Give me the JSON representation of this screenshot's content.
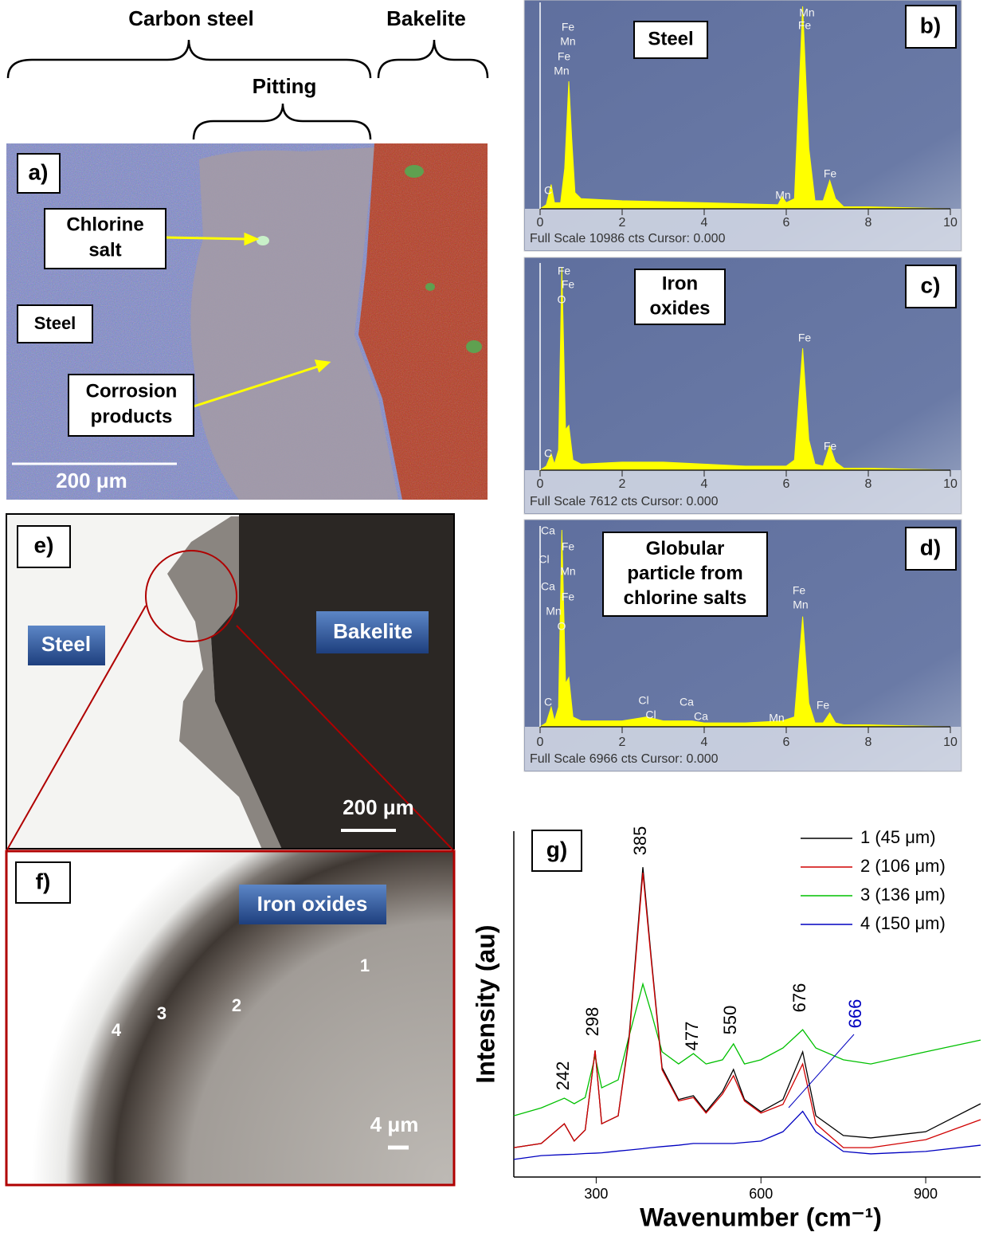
{
  "figure": {
    "panel_a": {
      "label": "a)",
      "carbon_steel": "Carbon steel",
      "bakelite": "Bakelite",
      "pitting": "Pitting",
      "chlorine_salt": [
        "Chlorine",
        "salt"
      ],
      "steel": "Steel",
      "corrosion_products": [
        "Corrosion",
        "products"
      ],
      "scale_bar": "200 μm"
    },
    "panel_e": {
      "label": "e)",
      "steel": "Steel",
      "bakelite": "Bakelite",
      "scale_bar": "200 μm"
    },
    "panel_f": {
      "label": "f)",
      "iron_oxides": "Iron oxides",
      "points": [
        "1",
        "2",
        "3",
        "4"
      ],
      "scale_bar": "4 μm"
    }
  },
  "chart_data": [
    {
      "type": "area",
      "panel_label": "b)",
      "box_text": [
        "Steel"
      ],
      "x": [
        0,
        0.15,
        0.27,
        0.35,
        0.5,
        0.6,
        0.7,
        0.77,
        0.85,
        1.0,
        2,
        4,
        5.8,
        5.9,
        6.0,
        6.2,
        6.4,
        6.55,
        6.7,
        6.9,
        7.06,
        7.2,
        7.4,
        8,
        10
      ],
      "values": [
        0,
        220,
        1318,
        330,
        330,
        2197,
        6921,
        3845,
        879,
        549,
        439,
        330,
        220,
        659,
        330,
        549,
        10986,
        3296,
        439,
        439,
        1538,
        549,
        110,
        110,
        0
      ],
      "color": "#ffff00",
      "xlim": [
        0,
        10
      ],
      "xticks": [
        0,
        2,
        4,
        6,
        8,
        10
      ],
      "ylim": [
        0,
        10986
      ],
      "peak_labels": [
        "Fe",
        "Mn",
        "Fe",
        "Mn",
        "C",
        "Mn",
        "Fe",
        "Mn",
        "Fe"
      ],
      "footer": "Full Scale 10986 cts Cursor: 0.000"
    },
    {
      "type": "area",
      "panel_label": "c)",
      "box_text": [
        "Iron",
        "oxides"
      ],
      "x": [
        0,
        0.15,
        0.27,
        0.35,
        0.45,
        0.53,
        0.62,
        0.7,
        0.8,
        1,
        2,
        3,
        4,
        5,
        6,
        6.2,
        6.4,
        6.55,
        6.7,
        6.9,
        7.06,
        7.2,
        7.4,
        8,
        10
      ],
      "values": [
        0,
        152,
        609,
        228,
        761,
        7612,
        1522,
        1675,
        381,
        228,
        304,
        304,
        228,
        152,
        152,
        381,
        4567,
        1142,
        228,
        152,
        913,
        304,
        76,
        76,
        0
      ],
      "color": "#ffff00",
      "xlim": [
        0,
        10
      ],
      "xticks": [
        0,
        2,
        4,
        6,
        8,
        10
      ],
      "ylim": [
        0,
        7612
      ],
      "peak_labels": [
        "Fe",
        "Fe",
        "O",
        "C",
        "Fe",
        "Fe"
      ],
      "footer": "Full Scale 7612 cts Cursor: 0.000"
    },
    {
      "type": "area",
      "panel_label": "d)",
      "box_text": [
        "Globular",
        "particle from",
        "chlorine salts"
      ],
      "x": [
        0,
        0.15,
        0.27,
        0.35,
        0.45,
        0.53,
        0.62,
        0.7,
        0.8,
        1,
        2,
        2.6,
        3,
        3.7,
        4,
        5,
        5.9,
        6.2,
        6.4,
        6.55,
        6.7,
        6.9,
        7.06,
        7.2,
        7.4,
        8,
        10
      ],
      "values": [
        0,
        139,
        697,
        209,
        697,
        6966,
        1533,
        1742,
        348,
        209,
        209,
        348,
        209,
        209,
        139,
        139,
        209,
        348,
        3901,
        836,
        139,
        139,
        488,
        139,
        70,
        70,
        0
      ],
      "color": "#ffff00",
      "xlim": [
        0,
        10
      ],
      "xticks": [
        0,
        2,
        4,
        6,
        8,
        10
      ],
      "ylim": [
        0,
        6966
      ],
      "peak_labels": [
        "Ca",
        "Fe",
        "Cl",
        "Mn",
        "Ca",
        "Fe",
        "Mn",
        "O",
        "C",
        "Cl",
        "Cl",
        "Ca",
        "Ca",
        "Mn",
        "Fe",
        "Mn",
        "Fe"
      ],
      "footer": "Full Scale 6966 cts Cursor: 0.000"
    },
    {
      "type": "line",
      "panel_label": "g)",
      "xlabel": "Wavenumber (cm⁻¹)",
      "ylabel": "Intensity (au)",
      "x": [
        150,
        200,
        242,
        260,
        280,
        298,
        310,
        340,
        360,
        385,
        400,
        420,
        450,
        477,
        500,
        530,
        550,
        570,
        600,
        640,
        676,
        700,
        750,
        800,
        900,
        1000
      ],
      "series": [
        {
          "name": "1 (45 μm)",
          "color": "#000000",
          "values": [
            0.85,
            0.97,
            1.54,
            1.04,
            1.36,
            3.66,
            1.54,
            1.77,
            4.08,
            8.96,
            6.38,
            3.16,
            2.24,
            2.35,
            1.89,
            2.47,
            3.11,
            2.24,
            1.89,
            2.24,
            3.62,
            1.77,
            1.2,
            1.13,
            1.31,
            2.12
          ]
        },
        {
          "name": "2 (106 μm)",
          "color": "#d00000",
          "values": [
            0.85,
            0.97,
            1.54,
            1.04,
            1.36,
            3.66,
            1.54,
            1.77,
            4.0,
            8.8,
            6.3,
            3.1,
            2.2,
            2.3,
            1.85,
            2.4,
            2.93,
            2.2,
            1.85,
            2.1,
            3.27,
            1.54,
            0.85,
            0.85,
            1.08,
            1.66
          ]
        },
        {
          "name": "3 (136 μm)",
          "color": "#00c000",
          "values": [
            1.77,
            2.0,
            2.28,
            2.12,
            2.3,
            3.5,
            2.58,
            2.81,
            4.08,
            5.58,
            4.77,
            3.62,
            3.27,
            3.57,
            3.27,
            3.39,
            3.85,
            3.27,
            3.39,
            3.73,
            4.26,
            3.73,
            3.39,
            3.27,
            3.62,
            3.96
          ]
        },
        {
          "name": "4 (150 μm)",
          "color": "#0000c0",
          "values": [
            0.51,
            0.62,
            0.65,
            0.66,
            0.68,
            0.69,
            0.7,
            0.75,
            0.78,
            0.82,
            0.85,
            0.88,
            0.92,
            0.97,
            0.97,
            0.97,
            0.97,
            1.0,
            1.04,
            1.31,
            1.9,
            1.31,
            0.74,
            0.67,
            0.74,
            0.92
          ]
        }
      ],
      "xlim": [
        150,
        1000
      ],
      "xticks": [
        300,
        600,
        900
      ],
      "ylim": [
        0,
        10
      ],
      "peak_labels": [
        "242",
        "298",
        "385",
        "477",
        "550",
        "676",
        "666"
      ]
    }
  ]
}
